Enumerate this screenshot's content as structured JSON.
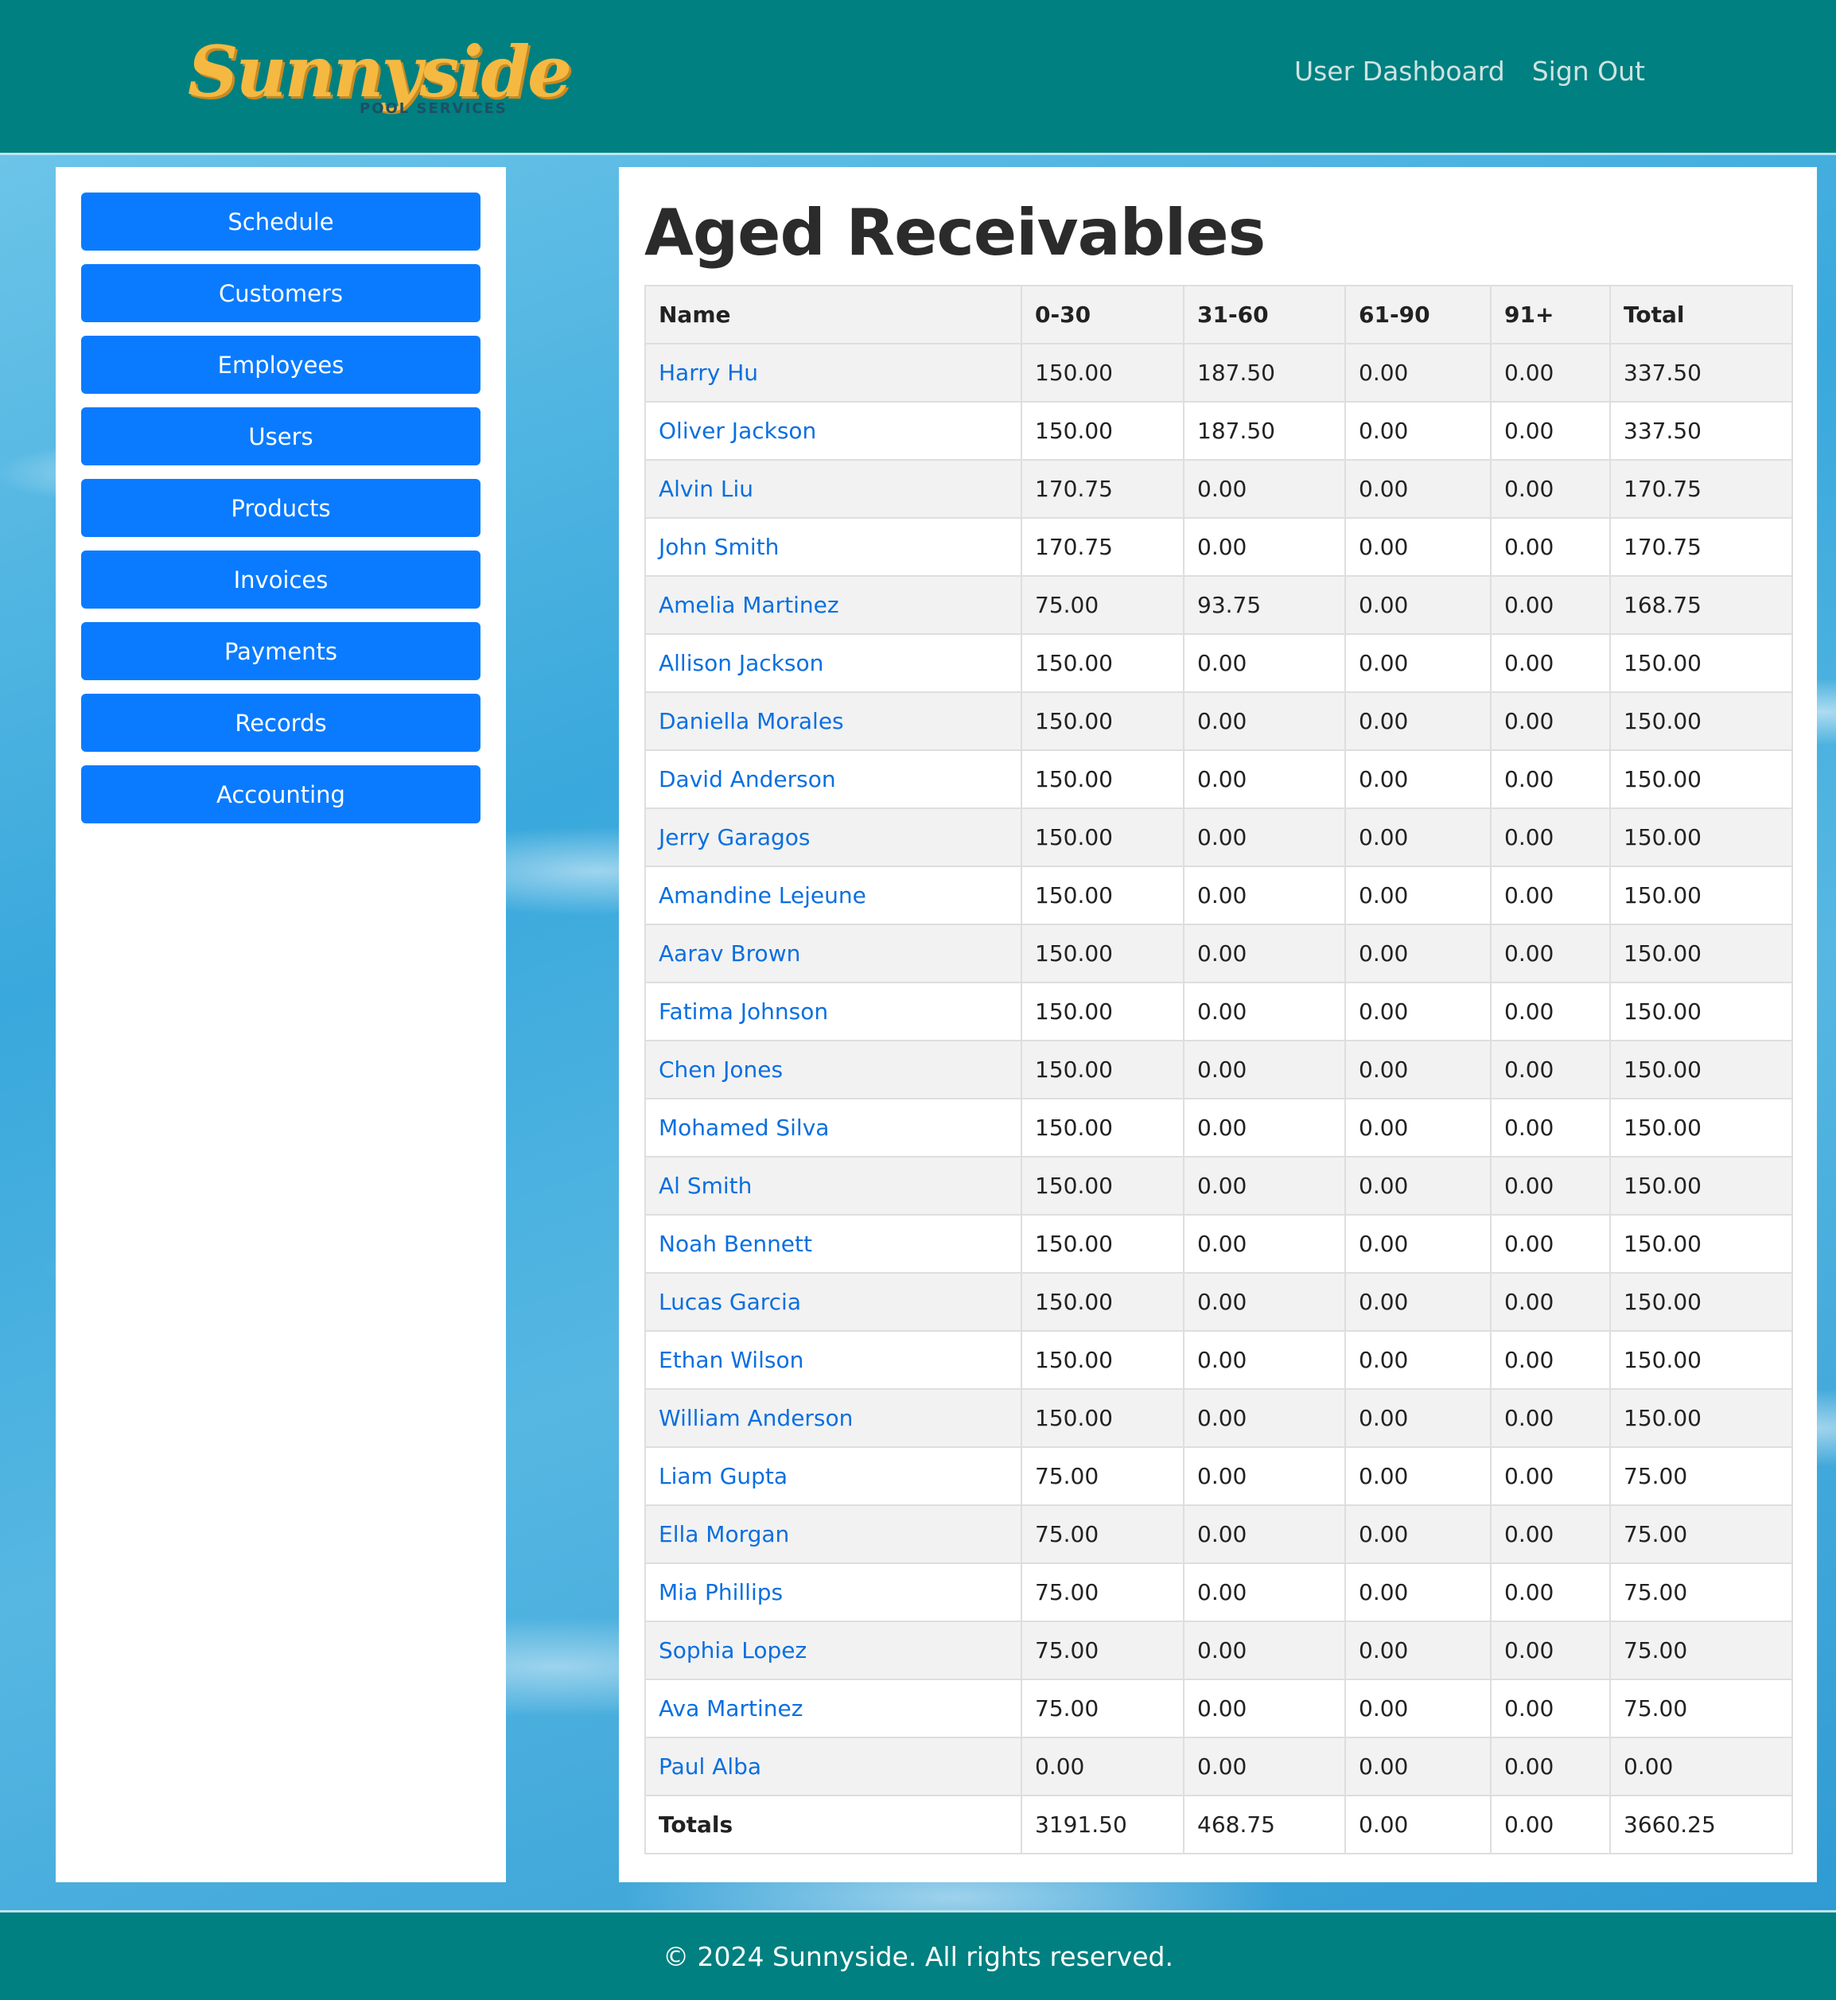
{
  "brand": {
    "logo_script": "Sunnyside",
    "logo_sub": "POOL SERVICES"
  },
  "nav": {
    "dashboard": "User Dashboard",
    "signout": "Sign Out"
  },
  "sidebar": {
    "items": [
      {
        "label": "Schedule"
      },
      {
        "label": "Customers"
      },
      {
        "label": "Employees"
      },
      {
        "label": "Users"
      },
      {
        "label": "Products"
      },
      {
        "label": "Invoices"
      },
      {
        "label": "Payments"
      },
      {
        "label": "Records"
      },
      {
        "label": "Accounting"
      }
    ]
  },
  "main": {
    "title": "Aged Receivables",
    "columns": [
      "Name",
      "0-30",
      "31-60",
      "61-90",
      "91+",
      "Total"
    ],
    "rows": [
      [
        "Harry Hu",
        "150.00",
        "187.50",
        "0.00",
        "0.00",
        "337.50"
      ],
      [
        "Oliver Jackson",
        "150.00",
        "187.50",
        "0.00",
        "0.00",
        "337.50"
      ],
      [
        "Alvin Liu",
        "170.75",
        "0.00",
        "0.00",
        "0.00",
        "170.75"
      ],
      [
        "John Smith",
        "170.75",
        "0.00",
        "0.00",
        "0.00",
        "170.75"
      ],
      [
        "Amelia Martinez",
        "75.00",
        "93.75",
        "0.00",
        "0.00",
        "168.75"
      ],
      [
        "Allison Jackson",
        "150.00",
        "0.00",
        "0.00",
        "0.00",
        "150.00"
      ],
      [
        "Daniella Morales",
        "150.00",
        "0.00",
        "0.00",
        "0.00",
        "150.00"
      ],
      [
        "David Anderson",
        "150.00",
        "0.00",
        "0.00",
        "0.00",
        "150.00"
      ],
      [
        "Jerry Garagos",
        "150.00",
        "0.00",
        "0.00",
        "0.00",
        "150.00"
      ],
      [
        "Amandine Lejeune",
        "150.00",
        "0.00",
        "0.00",
        "0.00",
        "150.00"
      ],
      [
        "Aarav Brown",
        "150.00",
        "0.00",
        "0.00",
        "0.00",
        "150.00"
      ],
      [
        "Fatima Johnson",
        "150.00",
        "0.00",
        "0.00",
        "0.00",
        "150.00"
      ],
      [
        "Chen Jones",
        "150.00",
        "0.00",
        "0.00",
        "0.00",
        "150.00"
      ],
      [
        "Mohamed Silva",
        "150.00",
        "0.00",
        "0.00",
        "0.00",
        "150.00"
      ],
      [
        "Al Smith",
        "150.00",
        "0.00",
        "0.00",
        "0.00",
        "150.00"
      ],
      [
        "Noah Bennett",
        "150.00",
        "0.00",
        "0.00",
        "0.00",
        "150.00"
      ],
      [
        "Lucas Garcia",
        "150.00",
        "0.00",
        "0.00",
        "0.00",
        "150.00"
      ],
      [
        "Ethan Wilson",
        "150.00",
        "0.00",
        "0.00",
        "0.00",
        "150.00"
      ],
      [
        "William Anderson",
        "150.00",
        "0.00",
        "0.00",
        "0.00",
        "150.00"
      ],
      [
        "Liam Gupta",
        "75.00",
        "0.00",
        "0.00",
        "0.00",
        "75.00"
      ],
      [
        "Ella Morgan",
        "75.00",
        "0.00",
        "0.00",
        "0.00",
        "75.00"
      ],
      [
        "Mia Phillips",
        "75.00",
        "0.00",
        "0.00",
        "0.00",
        "75.00"
      ],
      [
        "Sophia Lopez",
        "75.00",
        "0.00",
        "0.00",
        "0.00",
        "75.00"
      ],
      [
        "Ava Martinez",
        "75.00",
        "0.00",
        "0.00",
        "0.00",
        "75.00"
      ],
      [
        "Paul Alba",
        "0.00",
        "0.00",
        "0.00",
        "0.00",
        "0.00"
      ]
    ],
    "totals": [
      "Totals",
      "3191.50",
      "468.75",
      "0.00",
      "0.00",
      "3660.25"
    ]
  },
  "footer": {
    "copyright": "© 2024 Sunnyside. All rights reserved."
  },
  "colors": {
    "header_bg": "#008080",
    "button_bg": "#0a7bff",
    "link": "#0a6fe0",
    "logo": "#f5b942"
  }
}
